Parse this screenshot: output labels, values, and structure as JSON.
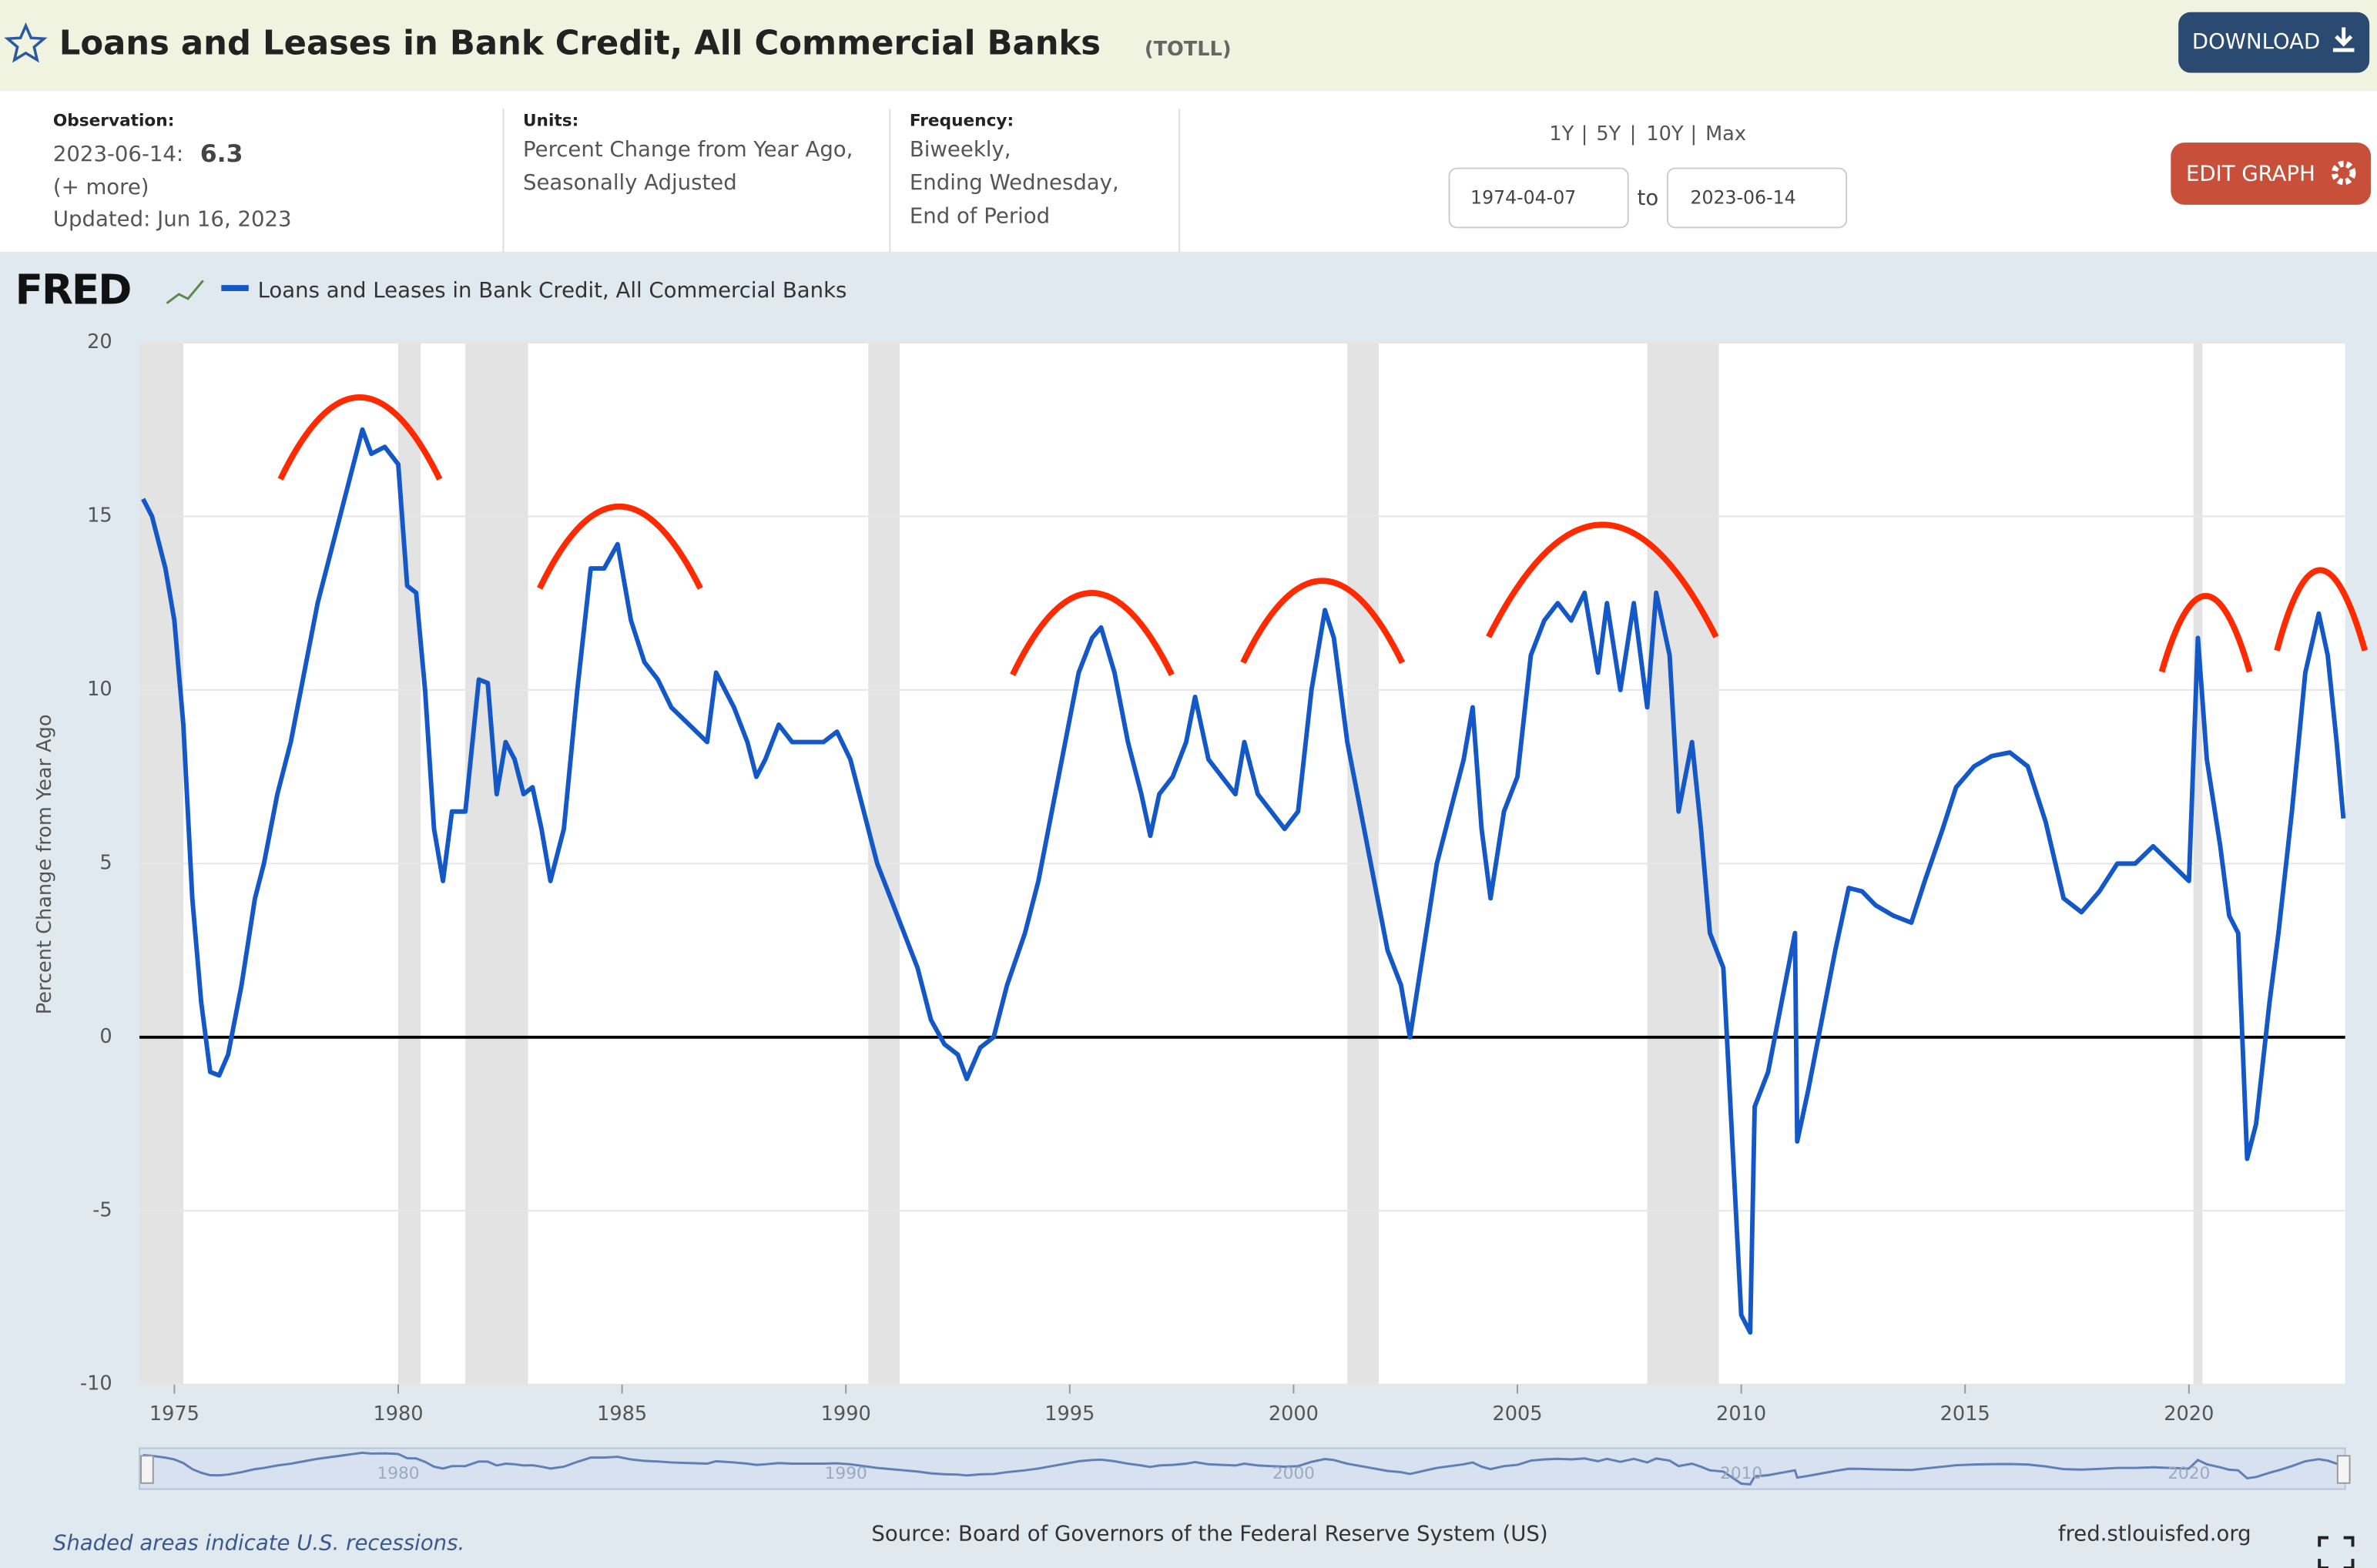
{
  "header": {
    "title": "Loans and Leases in Bank Credit, All Commercial Banks",
    "code": "(TOTLL)",
    "download": "DOWNLOAD"
  },
  "info": {
    "observation_label": "Observation:",
    "observation_date": "2023-06-14:",
    "observation_value": "6.3",
    "more": "(+ more)",
    "updated": "Updated: Jun 16, 2023",
    "units_label": "Units:",
    "units_lines": [
      "Percent Change from Year Ago,",
      "Seasonally Adjusted"
    ],
    "frequency_label": "Frequency:",
    "frequency_lines": [
      "Biweekly,",
      "Ending Wednesday,",
      "End of Period"
    ],
    "ranges": [
      "1Y",
      "5Y",
      "10Y",
      "Max"
    ],
    "range_separator": "|",
    "start_date": "1974-04-07",
    "to": "to",
    "end_date": "2023-06-14",
    "edit": "EDIT GRAPH"
  },
  "footer": {
    "note": "Shaded areas indicate U.S. recessions.",
    "source": "Source: Board of Governors of the Federal Reserve System (US)",
    "site": "fred.stlouisfed.org"
  },
  "navigator": {
    "labels": [
      "1980",
      "1990",
      "2000",
      "2010",
      "2020"
    ]
  },
  "chart_data": {
    "type": "line",
    "logo": "FRED",
    "y_label": "Percent Change from Year Ago",
    "xlim": [
      1974.22,
      2023.49
    ],
    "xticks": [
      1975,
      1980,
      1985,
      1990,
      1995,
      2000,
      2005,
      2010,
      2015,
      2020
    ],
    "ylim": [
      -10,
      20
    ],
    "yticks": [
      -10,
      -5,
      0,
      5,
      10,
      15,
      20
    ],
    "grid": true,
    "recessions": [
      [
        1974.22,
        1975.2
      ],
      [
        1980.0,
        1980.5
      ],
      [
        1981.5,
        1982.9
      ],
      [
        1990.5,
        1991.2
      ],
      [
        2001.2,
        2001.9
      ],
      [
        2007.9,
        2009.5
      ],
      [
        2020.1,
        2020.3
      ]
    ],
    "x": [
      1974.3,
      1974.5,
      1974.8,
      1975.0,
      1975.2,
      1975.4,
      1975.6,
      1975.8,
      1976.0,
      1976.2,
      1976.5,
      1976.8,
      1977.0,
      1977.3,
      1977.6,
      1977.9,
      1978.2,
      1978.5,
      1978.8,
      1979.0,
      1979.2,
      1979.4,
      1979.7,
      1980.0,
      1980.2,
      1980.4,
      1980.6,
      1980.8,
      1981.0,
      1981.2,
      1981.5,
      1981.8,
      1982.0,
      1982.2,
      1982.4,
      1982.6,
      1982.8,
      1983.0,
      1983.2,
      1983.4,
      1983.7,
      1984.0,
      1984.3,
      1984.6,
      1984.9,
      1985.2,
      1985.5,
      1985.8,
      1986.1,
      1986.5,
      1986.9,
      1987.1,
      1987.5,
      1987.8,
      1988.0,
      1988.2,
      1988.5,
      1988.8,
      1989.2,
      1989.5,
      1989.8,
      1990.1,
      1990.4,
      1990.7,
      1991.0,
      1991.3,
      1991.6,
      1991.9,
      1992.2,
      1992.5,
      1992.7,
      1993.0,
      1993.3,
      1993.6,
      1994.0,
      1994.3,
      1994.6,
      1994.9,
      1995.2,
      1995.5,
      1995.7,
      1996.0,
      1996.3,
      1996.6,
      1996.8,
      1997.0,
      1997.3,
      1997.6,
      1997.8,
      1998.1,
      1998.4,
      1998.7,
      1998.9,
      1999.2,
      1999.5,
      1999.8,
      2000.1,
      2000.4,
      2000.7,
      2000.9,
      2001.2,
      2001.5,
      2001.8,
      2002.1,
      2002.4,
      2002.6,
      2002.9,
      2003.2,
      2003.5,
      2003.8,
      2004.0,
      2004.2,
      2004.4,
      2004.7,
      2005.0,
      2005.3,
      2005.6,
      2005.9,
      2006.2,
      2006.5,
      2006.8,
      2007.0,
      2007.3,
      2007.6,
      2007.9,
      2008.1,
      2008.4,
      2008.6,
      2008.9,
      2009.1,
      2009.3,
      2009.6,
      2009.8,
      2010.0,
      2010.2,
      2010.3,
      2010.6,
      2010.9,
      2011.2,
      2011.25,
      2011.5,
      2011.8,
      2012.1,
      2012.4,
      2012.7,
      2013.0,
      2013.4,
      2013.8,
      2014.1,
      2014.5,
      2014.8,
      2015.2,
      2015.6,
      2016.0,
      2016.4,
      2016.8,
      2017.2,
      2017.6,
      2018.0,
      2018.4,
      2018.8,
      2019.2,
      2019.6,
      2020.0,
      2020.2,
      2020.4,
      2020.7,
      2020.9,
      2021.1,
      2021.3,
      2021.5,
      2021.8,
      2022.0,
      2022.3,
      2022.6,
      2022.9,
      2023.1,
      2023.3,
      2023.45
    ],
    "series": [
      {
        "name": "Loans and Leases in Bank Credit, All Commercial Banks",
        "color": "#1458c8",
        "values": [
          15.5,
          15.0,
          13.5,
          12.0,
          9,
          4,
          1,
          -1,
          -1.1,
          -0.5,
          1.5,
          4,
          5,
          7,
          8.5,
          10.5,
          12.5,
          14,
          15.5,
          16.5,
          17.5,
          16.8,
          17,
          16.5,
          13,
          12.8,
          10,
          6,
          4.5,
          6.5,
          6.5,
          10.3,
          10.2,
          7,
          8.5,
          8,
          7,
          7.2,
          6,
          4.5,
          6,
          10,
          13.5,
          13.5,
          14.2,
          12,
          10.8,
          10.3,
          9.5,
          9,
          8.5,
          10.5,
          9.5,
          8.5,
          7.5,
          8,
          9,
          8.5,
          8.5,
          8.5,
          8.8,
          8,
          6.5,
          5,
          4,
          3,
          2,
          0.5,
          -0.2,
          -0.5,
          -1.2,
          -0.3,
          0,
          1.5,
          3,
          4.5,
          6.5,
          8.5,
          10.5,
          11.5,
          11.8,
          10.5,
          8.5,
          7,
          5.8,
          7,
          7.5,
          8.5,
          9.8,
          8,
          7.5,
          7,
          8.5,
          7,
          6.5,
          6,
          6.5,
          10,
          12.3,
          11.5,
          8.5,
          6.5,
          4.5,
          2.5,
          1.5,
          0,
          2.5,
          5,
          6.5,
          8,
          9.5,
          6,
          4,
          6.5,
          7.5,
          11,
          12,
          12.5,
          12,
          12.8,
          10.5,
          12.5,
          10,
          12.5,
          9.5,
          12.8,
          11,
          6.5,
          8.5,
          6,
          3,
          2,
          -3,
          -8,
          -8.5,
          -2,
          -1,
          1,
          3,
          -3,
          -1.5,
          0.5,
          2.5,
          4.3,
          4.2,
          3.8,
          3.5,
          3.3,
          4.5,
          6,
          7.2,
          7.8,
          8.1,
          8.2,
          7.8,
          6.2,
          4,
          3.6,
          4.2,
          5,
          5,
          5.5,
          5,
          4.5,
          11.5,
          8,
          5.5,
          3.5,
          3,
          -3.5,
          -2.5,
          1,
          3,
          6.5,
          10.5,
          12.2,
          11,
          8.5,
          6.3
        ]
      }
    ]
  }
}
